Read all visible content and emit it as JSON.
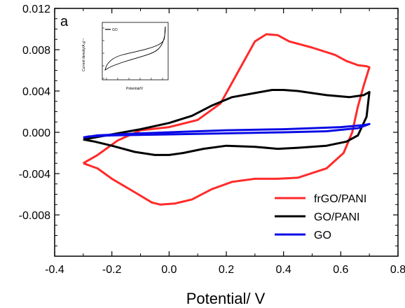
{
  "chart_data": {
    "type": "line",
    "title": "",
    "panel_label": "a",
    "xlabel": "Potential/ V",
    "ylabel": "",
    "xlim": [
      -0.4,
      0.8
    ],
    "ylim": [
      -0.012,
      0.012
    ],
    "x_ticks": [
      "-0.4",
      "-0.2",
      "0.0",
      "0.2",
      "0.4",
      "0.6",
      "0.8"
    ],
    "y_ticks": [
      "-0.008",
      "-0.004",
      "0.000",
      "0.004",
      "0.008",
      "0.012"
    ],
    "grid": false,
    "legend_position": "bottom-right",
    "series": [
      {
        "name": "frGO/PANI",
        "color": "#ff2a2a",
        "points": [
          [
            -0.3,
            -0.003
          ],
          [
            -0.25,
            -0.0022
          ],
          [
            -0.18,
            -0.0008
          ],
          [
            -0.1,
            0.0002
          ],
          [
            0.0,
            0.0005
          ],
          [
            0.1,
            0.0012
          ],
          [
            0.18,
            0.0028
          ],
          [
            0.24,
            0.0058
          ],
          [
            0.3,
            0.0088
          ],
          [
            0.34,
            0.0095
          ],
          [
            0.38,
            0.0094
          ],
          [
            0.42,
            0.0088
          ],
          [
            0.5,
            0.0082
          ],
          [
            0.58,
            0.0075
          ],
          [
            0.62,
            0.0069
          ],
          [
            0.66,
            0.0065
          ],
          [
            0.69,
            0.0064
          ],
          [
            0.7,
            0.0063
          ],
          [
            0.68,
            0.0045
          ],
          [
            0.66,
            0.0025
          ],
          [
            0.64,
            0.0
          ],
          [
            0.61,
            -0.002
          ],
          [
            0.55,
            -0.0035
          ],
          [
            0.45,
            -0.0044
          ],
          [
            0.38,
            -0.0045
          ],
          [
            0.3,
            -0.0045
          ],
          [
            0.22,
            -0.0048
          ],
          [
            0.15,
            -0.0055
          ],
          [
            0.08,
            -0.0065
          ],
          [
            0.02,
            -0.0069
          ],
          [
            -0.03,
            -0.007
          ],
          [
            -0.06,
            -0.0068
          ],
          [
            -0.12,
            -0.0058
          ],
          [
            -0.2,
            -0.0045
          ],
          [
            -0.25,
            -0.0035
          ],
          [
            -0.3,
            -0.003
          ]
        ]
      },
      {
        "name": "GO/PANI",
        "color": "#000000",
        "points": [
          [
            -0.3,
            -0.0007
          ],
          [
            -0.2,
            -0.0002
          ],
          [
            -0.1,
            0.0003
          ],
          [
            0.0,
            0.0009
          ],
          [
            0.08,
            0.0016
          ],
          [
            0.15,
            0.0026
          ],
          [
            0.22,
            0.0034
          ],
          [
            0.3,
            0.0038
          ],
          [
            0.36,
            0.0041
          ],
          [
            0.4,
            0.0041
          ],
          [
            0.45,
            0.004
          ],
          [
            0.55,
            0.0036
          ],
          [
            0.63,
            0.0034
          ],
          [
            0.68,
            0.0036
          ],
          [
            0.7,
            0.0039
          ],
          [
            0.69,
            0.0015
          ],
          [
            0.66,
            -0.0003
          ],
          [
            0.62,
            -0.0009
          ],
          [
            0.55,
            -0.0013
          ],
          [
            0.45,
            -0.0015
          ],
          [
            0.38,
            -0.0016
          ],
          [
            0.3,
            -0.0014
          ],
          [
            0.2,
            -0.0013
          ],
          [
            0.12,
            -0.0016
          ],
          [
            0.05,
            -0.002
          ],
          [
            0.0,
            -0.0022
          ],
          [
            -0.05,
            -0.0022
          ],
          [
            -0.12,
            -0.0019
          ],
          [
            -0.2,
            -0.0013
          ],
          [
            -0.26,
            -0.0009
          ],
          [
            -0.3,
            -0.0007
          ]
        ]
      },
      {
        "name": "GO",
        "color": "#0a0ae6",
        "points": [
          [
            -0.3,
            -0.0005
          ],
          [
            -0.25,
            -0.0003
          ],
          [
            -0.1,
            -0.0001
          ],
          [
            0.0,
            0.0
          ],
          [
            0.2,
            0.0002
          ],
          [
            0.4,
            0.0003
          ],
          [
            0.6,
            0.0005
          ],
          [
            0.68,
            0.0007
          ],
          [
            0.7,
            0.0008
          ],
          [
            0.66,
            0.0004
          ],
          [
            0.55,
            0.0001
          ],
          [
            0.4,
            0.0
          ],
          [
            0.2,
            -0.0001
          ],
          [
            0.0,
            -0.0002
          ],
          [
            -0.2,
            -0.0003
          ],
          [
            -0.28,
            -0.0004
          ],
          [
            -0.3,
            -0.0005
          ]
        ]
      }
    ],
    "inset": {
      "legend_label": "GO",
      "xlabel": "Potential/V",
      "ylabel": "Current density/A.g⁻¹"
    }
  }
}
